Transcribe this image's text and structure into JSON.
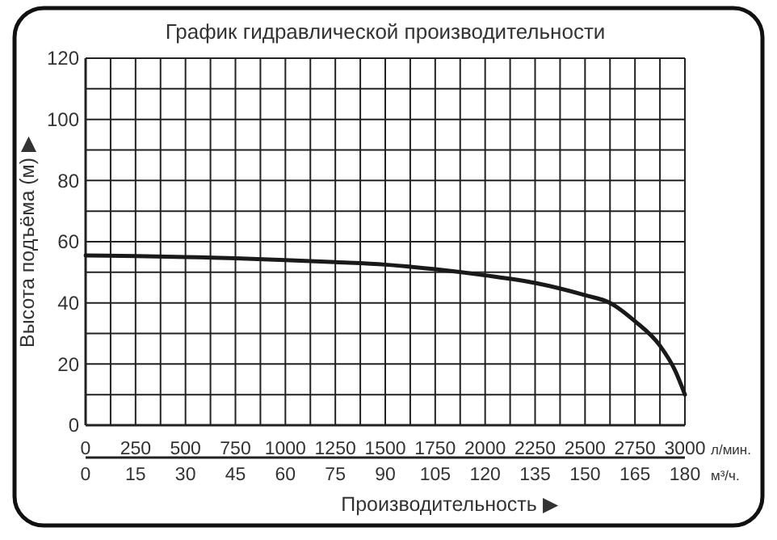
{
  "chart_data": {
    "type": "line",
    "title": "График гидравлической производительности",
    "xlabel": "Производительность ▶",
    "ylabel": "Высота подъёма (м) ▶",
    "annotations": [
      "л/мин.",
      "м³/ч."
    ],
    "x": [
      0,
      250,
      500,
      750,
      1000,
      1250,
      1500,
      1750,
      2000,
      2250,
      2500,
      2625,
      2750,
      2875,
      2950,
      3000
    ],
    "series": [
      {
        "color": "#1a1a1a",
        "values": [
          55.5,
          55.3,
          55,
          54.6,
          54,
          53.3,
          52.5,
          51,
          49,
          46.5,
          42.5,
          40,
          34,
          26,
          18,
          10
        ]
      }
    ],
    "xlim": [
      0,
      3000
    ],
    "xticks": [
      0,
      {
        "value": 125,
        "label": null
      },
      250,
      {
        "value": 375,
        "label": null
      },
      500,
      {
        "value": 625,
        "label": null
      },
      750,
      {
        "value": 875,
        "label": null
      },
      1000,
      {
        "value": 1125,
        "label": null
      },
      1250,
      {
        "value": 1375,
        "label": null
      },
      1500,
      {
        "value": 1625,
        "label": null
      },
      1750,
      {
        "value": 1875,
        "label": null
      },
      2000,
      {
        "value": 2125,
        "label": null
      },
      2250,
      {
        "value": 2375,
        "label": null
      },
      2500,
      {
        "value": 2625,
        "label": null
      },
      2750,
      {
        "value": 2875,
        "label": null
      },
      3000
    ],
    "x2lim": [
      0,
      180
    ],
    "x2ticks": [
      0,
      15,
      30,
      45,
      60,
      75,
      90,
      105,
      120,
      135,
      150,
      165,
      180
    ],
    "ylim": [
      0,
      120
    ],
    "yticks": [
      0,
      {
        "value": 10,
        "label": null
      },
      20,
      {
        "value": 30,
        "label": null
      },
      40,
      {
        "value": 50,
        "label": null
      },
      60,
      {
        "value": 70,
        "label": null
      },
      80,
      {
        "value": 90,
        "label": null
      },
      100,
      {
        "value": 110,
        "label": null
      },
      120
    ],
    "grid": true,
    "marker": "none",
    "line_style": "solid"
  }
}
